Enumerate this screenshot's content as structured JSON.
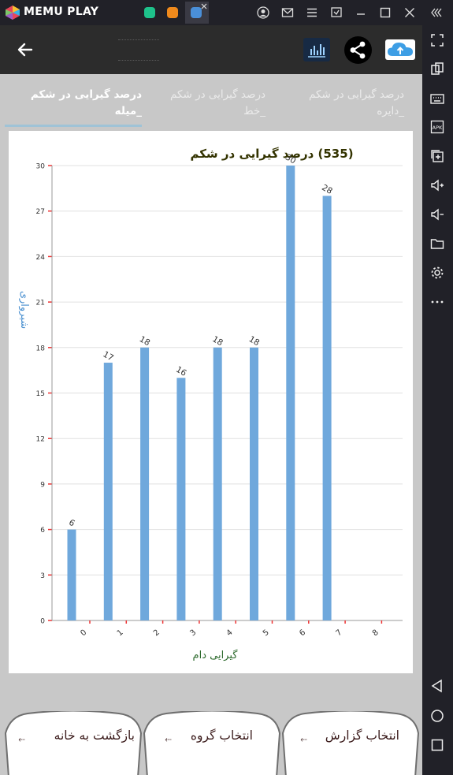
{
  "emulator": {
    "brand": "MEMU PLAY",
    "tabs": [
      {
        "icon": "app-green-icon",
        "color": "#1ec28b"
      },
      {
        "icon": "app-orange-icon",
        "color": "#f08a1c"
      },
      {
        "icon": "app-blue-icon",
        "color": "#4a8fd8"
      }
    ]
  },
  "tabs": [
    {
      "label": "درصد گیرایی در شکم\n_میله",
      "selected": true
    },
    {
      "label": "درصد گیرایی در شکم\n_خط",
      "selected": false
    },
    {
      "label": "درصد گیرایی در شکم\n_دایره",
      "selected": false
    }
  ],
  "chart_data": {
    "type": "bar",
    "title": "(535) درصد گیرایی در شکم",
    "xlabel": "گیرایی دام",
    "ylabel": "شیرواری",
    "categories": [
      "0",
      "1",
      "2",
      "3",
      "4",
      "5",
      "6",
      "7",
      "8"
    ],
    "values": [
      6,
      17,
      18,
      16,
      18,
      18,
      30,
      28,
      null
    ],
    "ylim": [
      0,
      30
    ],
    "yticks": [
      0,
      3,
      6,
      9,
      12,
      15,
      18,
      21,
      24,
      27,
      30
    ],
    "bar_color": "#6fa8dc",
    "grid": true
  },
  "buttons": {
    "home": "بازگشت به خانه",
    "group": "انتخاب گروه",
    "report": "انتخاب گزارش",
    "arrow": "⬸"
  }
}
